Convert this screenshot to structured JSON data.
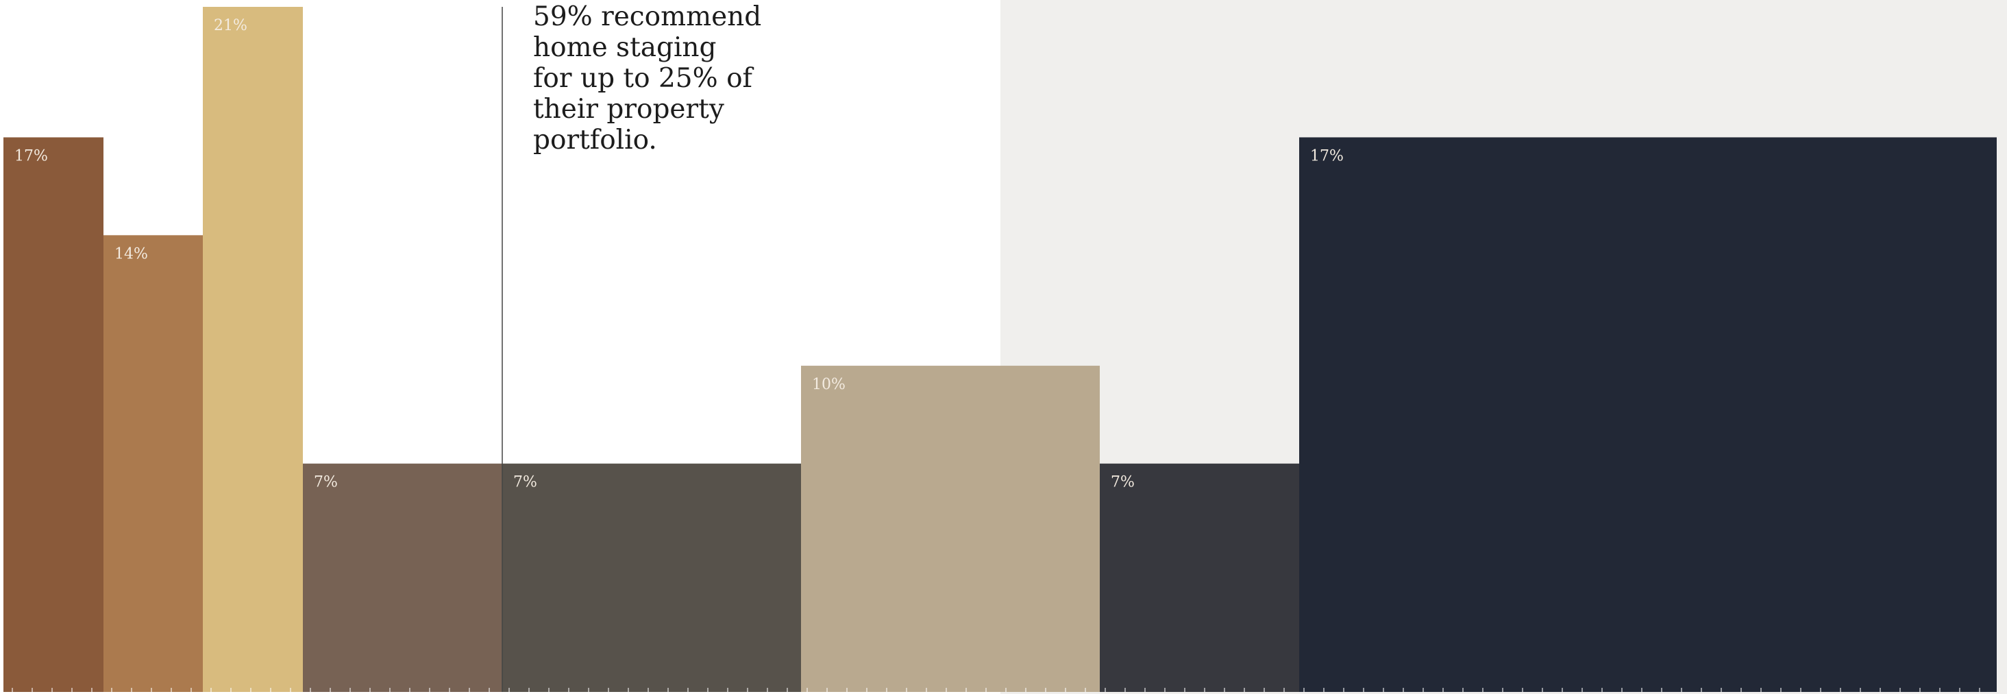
{
  "chart_data": {
    "type": "bar",
    "subtype": "variable-width",
    "ylim": [
      0,
      21
    ],
    "grid": false,
    "shaded_region": {
      "color": "#f0efed"
    },
    "annotation": {
      "lines": [
        "59% recommend",
        "home staging",
        "for up to 25% of",
        "their property",
        "portfolio."
      ]
    },
    "bars": [
      {
        "value": 17,
        "label": "17%",
        "color": "#8a5a3a"
      },
      {
        "value": 14,
        "label": "14%",
        "color": "#ab7a4e"
      },
      {
        "value": 21,
        "label": "21%",
        "color": "#d8bb7e"
      },
      {
        "value": 7,
        "label": "7%",
        "color": "#776254"
      },
      {
        "value": 7,
        "label": "7%",
        "color": "#57524b"
      },
      {
        "value": 10,
        "label": "10%",
        "color": "#b9a98f"
      },
      {
        "value": 7,
        "label": "7%",
        "color": "#37383e"
      },
      {
        "value": 17,
        "label": "17%",
        "color": "#222836"
      }
    ]
  }
}
